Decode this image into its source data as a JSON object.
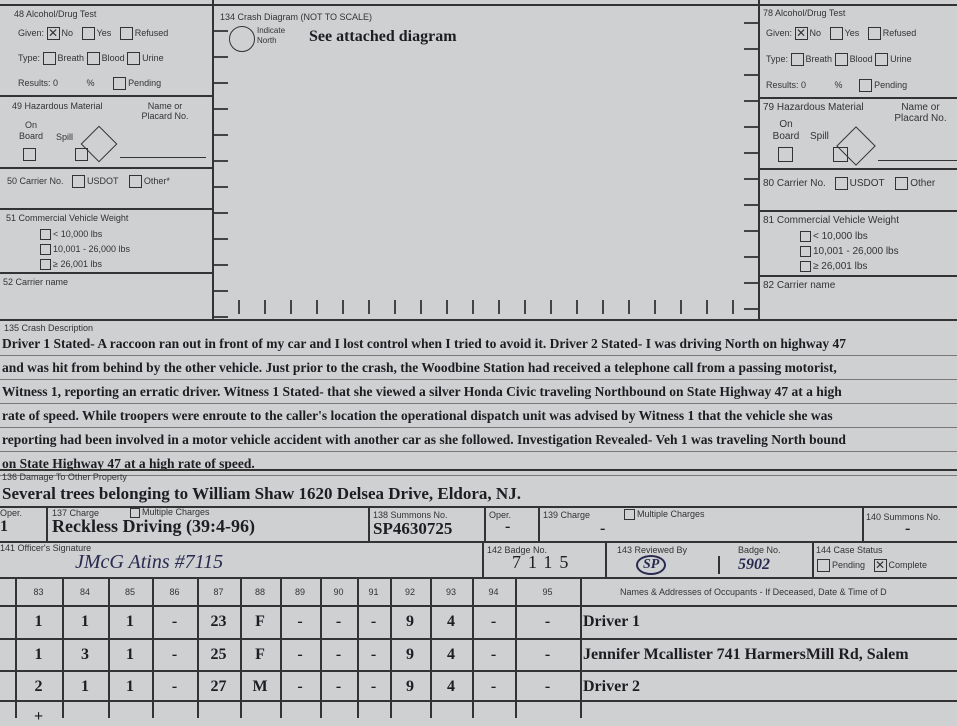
{
  "left_panel": {
    "alcohol_title": "48 Alcohol/Drug Test",
    "given_label": "Given:",
    "no": "No",
    "yes": "Yes",
    "refused": "Refused",
    "given_value": "No",
    "type_label": "Type:",
    "breath": "Breath",
    "blood": "Blood",
    "urine": "Urine",
    "results_label": "Results: 0",
    "percent": "%",
    "pending": "Pending",
    "hazmat_title": "49 Hazardous Material",
    "on_board": "On Board",
    "spill": "Spill",
    "placard": "Name or Placard No.",
    "carrier_no": "50 Carrier No.",
    "usdot": "USDOT",
    "other": "Other*",
    "weight_title": "51 Commercial Vehicle Weight",
    "w1": "< 10,000 lbs",
    "w2": "10,001 - 26,000 lbs",
    "w3": "≥ 26,001 lbs",
    "carrier_name": "52 Carrier name"
  },
  "right_panel": {
    "alcohol_title": "78 Alcohol/Drug Test",
    "given_label": "Given:",
    "no": "No",
    "yes": "Yes",
    "refused": "Refused",
    "given_value": "No",
    "type_label": "Type:",
    "breath": "Breath",
    "blood": "Blood",
    "urine": "Urine",
    "results_label": "Results: 0",
    "percent": "%",
    "pending": "Pending",
    "hazmat_title": "79 Hazardous Material",
    "on_board": "On Board",
    "spill": "Spill",
    "placard": "Name or Placard No.",
    "carrier_no": "80 Carrier No.",
    "usdot": "USDOT",
    "other": "Other",
    "weight_title": "81 Commercial Vehicle Weight",
    "w1": "< 10,000 lbs",
    "w2": "10,001 - 26,000 lbs",
    "w3": "≥ 26,001 lbs",
    "carrier_name": "82 Carrier name"
  },
  "diagram": {
    "title": "134 Crash Diagram (NOT TO SCALE)",
    "north": "Indicate North",
    "note": "See attached diagram"
  },
  "description": {
    "label": "135 Crash Description",
    "lines": [
      "Driver 1 Stated- A raccoon ran out in front of my car and I lost control when I tried to avoid it.  Driver 2 Stated- I was driving North on highway 47",
      "and was hit from behind by the other vehicle.  Just prior to the crash, the Woodbine Station had received a telephone call from a passing motorist,",
      "Witness 1, reporting an erratic driver.  Witness 1 Stated-  that she viewed a silver Honda Civic traveling Northbound on State Highway 47 at a high",
      "rate of speed.  While troopers were enroute to the caller's location the operational dispatch unit was advised  by Witness 1 that the vehicle she was",
      "reporting had been involved in a motor vehicle accident with another car as she followed.  Investigation Revealed-  Veh 1 was traveling North bound",
      "on State Highway 47 at a high rate of speed."
    ]
  },
  "damage": {
    "label": "136 Damage To Other Property",
    "value": "Several trees belonging to William Shaw 1620 Delsea Drive, Eldora, NJ."
  },
  "charges": {
    "oper_label": "Oper.",
    "oper_value": "1",
    "charge_label": "137 Charge",
    "multiple": "Multiple Charges",
    "charge_value": "Reckless Driving (39:4-96)",
    "summons_label": "138 Summons No.",
    "summons_value": "SP4630725",
    "oper2_label": "Oper.",
    "oper2_value": "-",
    "charge2_label": "139 Charge",
    "multiple2": "Multiple Charges",
    "charge2_value": "-",
    "summons2_label": "140 Summons No.",
    "summons2_value": "-"
  },
  "signature": {
    "sig_label": "141 Officer's Signature",
    "sig_value": "JMcG Atins #7115",
    "badge_label": "142 Badge No.",
    "badge_value": "7115",
    "reviewed_label": "143 Reviewed By",
    "reviewed_value": "SP",
    "badge2_label": "Badge No.",
    "badge2_value": "5902",
    "status_label": "144 Case Status",
    "pending": "Pending",
    "complete": "Complete",
    "status_value": "Complete"
  },
  "occupants": {
    "columns": [
      "83",
      "84",
      "85",
      "86",
      "87",
      "88",
      "89",
      "90",
      "91",
      "92",
      "93",
      "94",
      "95"
    ],
    "names_header": "Names & Addresses of Occupants  - If Deceased, Date & Time of D",
    "rows": [
      {
        "cells": [
          "1",
          "1",
          "1",
          "-",
          "23",
          "F",
          "-",
          "-",
          "-",
          "9",
          "4",
          "-",
          "-"
        ],
        "name": "Driver 1"
      },
      {
        "cells": [
          "1",
          "3",
          "1",
          "-",
          "25",
          "F",
          "-",
          "-",
          "-",
          "9",
          "4",
          "-",
          "-"
        ],
        "name": "Jennifer Mcallister 741 HarmersMill Rd, Salem"
      },
      {
        "cells": [
          "2",
          "1",
          "1",
          "-",
          "27",
          "M",
          "-",
          "-",
          "-",
          "9",
          "4",
          "-",
          "-"
        ],
        "name": "Driver 2"
      },
      {
        "cells": [
          "+",
          "",
          "",
          "",
          "",
          "",
          "",
          "",
          "",
          "",
          "",
          "",
          ""
        ],
        "name": ""
      }
    ]
  }
}
